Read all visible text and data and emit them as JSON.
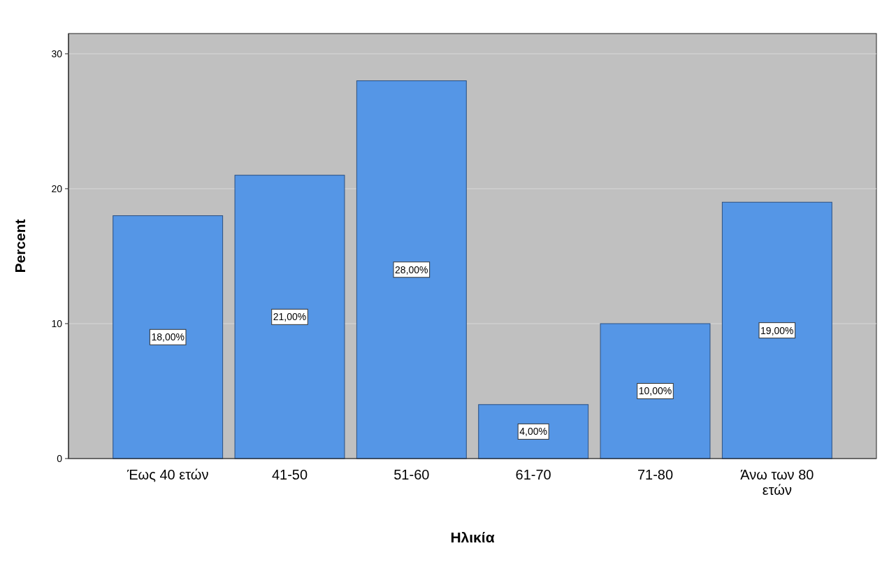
{
  "chart_data": {
    "type": "bar",
    "xlabel": "Ηλικία",
    "ylabel": "Percent",
    "categories": [
      "Έως 40 ετών",
      "41-50",
      "51-60",
      "61-70",
      "71-80",
      "Άνω των 80 ετών"
    ],
    "values": [
      18,
      21,
      28,
      4,
      10,
      19
    ],
    "value_labels": [
      "18,00%",
      "21,00%",
      "28,00%",
      "4,00%",
      "10,00%",
      "19,00%"
    ],
    "color": "#5596e6",
    "ylim": [
      0,
      31.5
    ],
    "yticks": [
      0,
      10,
      20,
      30
    ],
    "grid": "y"
  }
}
